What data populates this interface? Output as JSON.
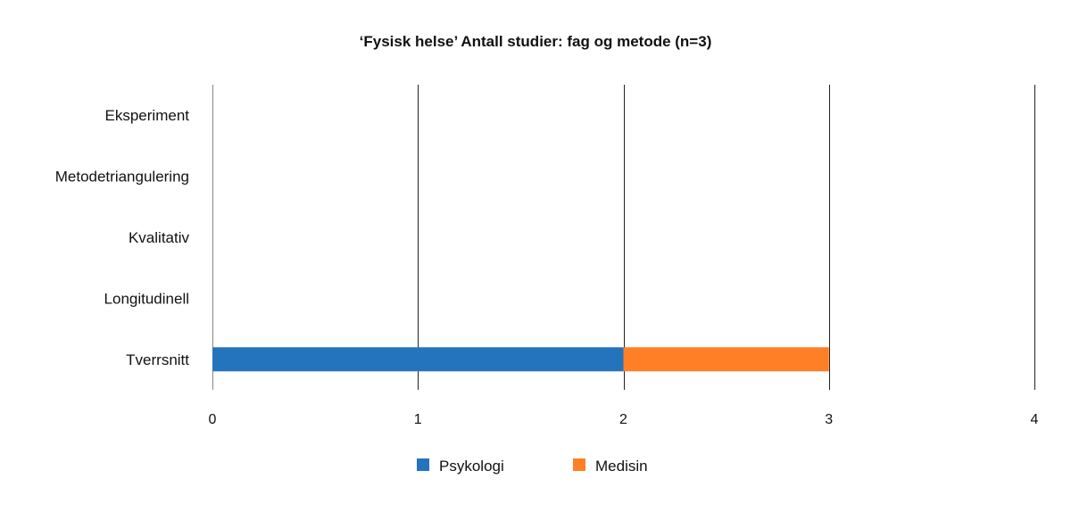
{
  "chart_data": {
    "type": "bar",
    "orientation": "horizontal",
    "stacked": true,
    "title": "‘Fysisk helse’ Antall studier: fag og metode (n=3)",
    "categories": [
      "Eksperiment",
      "Metodetriangulering",
      "Kvalitativ",
      "Longitudinell",
      "Tverrsnitt"
    ],
    "series": [
      {
        "name": "Psykologi",
        "color": "#2473BD",
        "values": [
          0,
          0,
          0,
          0,
          2
        ]
      },
      {
        "name": "Medisin",
        "color": "#FF7F27",
        "values": [
          0,
          0,
          0,
          0,
          1
        ]
      }
    ],
    "xlim": [
      0,
      4
    ],
    "xticks": [
      "0",
      "1",
      "2",
      "3",
      "4"
    ],
    "grid": "vertical",
    "legend": "bottom"
  }
}
